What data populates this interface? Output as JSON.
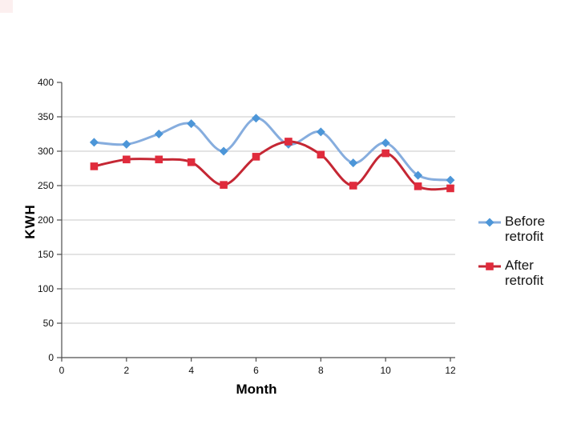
{
  "chart_data": {
    "type": "line",
    "xlabel": "Month",
    "ylabel": "KWH",
    "x": [
      1,
      2,
      3,
      4,
      5,
      6,
      7,
      8,
      9,
      10,
      11,
      12
    ],
    "series": [
      {
        "name": "Before retrofit",
        "marker": "diamond",
        "line_color": "#86ADDE",
        "marker_color": "#4C96D8",
        "values": [
          313,
          310,
          325,
          340,
          300,
          348,
          310,
          328,
          283,
          312,
          265,
          258
        ]
      },
      {
        "name": "After retrofit",
        "marker": "square",
        "line_color": "#C52734",
        "marker_color": "#E02B3C",
        "values": [
          278,
          288,
          288,
          284,
          251,
          292,
          314,
          295,
          250,
          297,
          249,
          246
        ]
      }
    ],
    "xlim": [
      0,
      12
    ],
    "ylim": [
      0,
      400
    ],
    "x_ticks": [
      0,
      2,
      4,
      6,
      8,
      10,
      12
    ],
    "y_ticks": [
      0,
      50,
      100,
      150,
      200,
      250,
      300,
      350,
      400
    ],
    "grid": "horizontal",
    "gridline_color": "#c9c9c9",
    "axis_color": "#4d4d4d",
    "legend_position": "right",
    "smoothed_lines": true
  }
}
